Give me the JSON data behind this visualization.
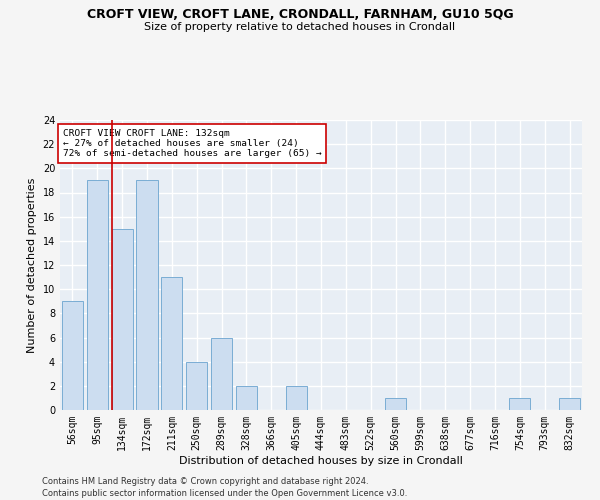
{
  "title": "CROFT VIEW, CROFT LANE, CRONDALL, FARNHAM, GU10 5QG",
  "subtitle": "Size of property relative to detached houses in Crondall",
  "xlabel": "Distribution of detached houses by size in Crondall",
  "ylabel": "Number of detached properties",
  "categories": [
    "56sqm",
    "95sqm",
    "134sqm",
    "172sqm",
    "211sqm",
    "250sqm",
    "289sqm",
    "328sqm",
    "366sqm",
    "405sqm",
    "444sqm",
    "483sqm",
    "522sqm",
    "560sqm",
    "599sqm",
    "638sqm",
    "677sqm",
    "716sqm",
    "754sqm",
    "793sqm",
    "832sqm"
  ],
  "values": [
    9,
    19,
    15,
    19,
    11,
    4,
    6,
    2,
    0,
    2,
    0,
    0,
    0,
    1,
    0,
    0,
    0,
    0,
    1,
    0,
    1
  ],
  "bar_color": "#ccddf0",
  "bar_edge_color": "#7aadd4",
  "vline_color": "#cc0000",
  "annotation_text": "CROFT VIEW CROFT LANE: 132sqm\n← 27% of detached houses are smaller (24)\n72% of semi-detached houses are larger (65) →",
  "annotation_box_color": "#ffffff",
  "annotation_box_edge": "#cc0000",
  "ylim": [
    0,
    24
  ],
  "yticks": [
    0,
    2,
    4,
    6,
    8,
    10,
    12,
    14,
    16,
    18,
    20,
    22,
    24
  ],
  "footer1": "Contains HM Land Registry data © Crown copyright and database right 2024.",
  "footer2": "Contains public sector information licensed under the Open Government Licence v3.0.",
  "bg_color": "#e8eef5",
  "grid_color": "#ffffff",
  "fig_bg_color": "#f5f5f5",
  "title_fontsize": 9,
  "subtitle_fontsize": 8,
  "axis_label_fontsize": 8,
  "tick_fontsize": 7,
  "footer_fontsize": 6
}
